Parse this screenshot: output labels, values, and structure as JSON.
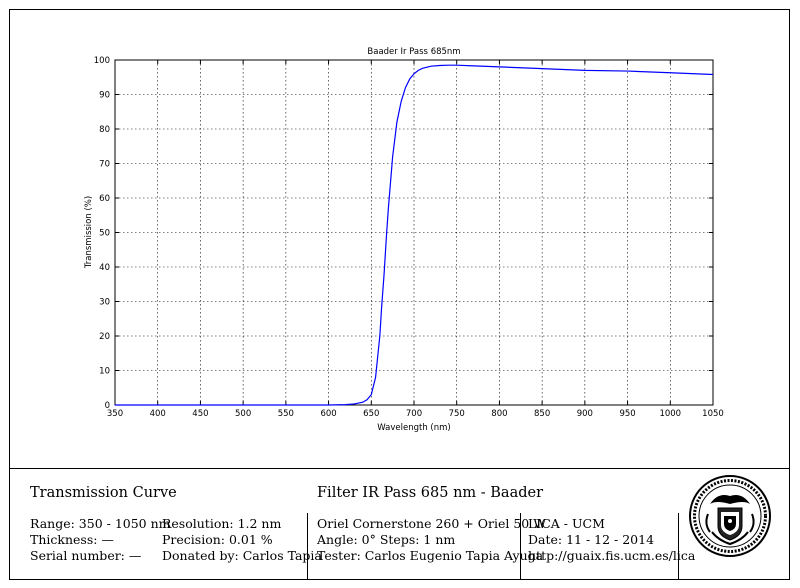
{
  "chart_data": {
    "type": "line",
    "title": "Baader Ir Pass 685nm",
    "xlabel": "Wavelength (nm)",
    "ylabel": "Transmission (%)",
    "xlim": [
      350,
      1050
    ],
    "ylim": [
      0,
      100
    ],
    "xticks": [
      350,
      400,
      450,
      500,
      550,
      600,
      650,
      700,
      750,
      800,
      850,
      900,
      950,
      1000,
      1050
    ],
    "yticks": [
      0,
      10,
      20,
      30,
      40,
      50,
      60,
      70,
      80,
      90,
      100
    ],
    "grid": true,
    "series": [
      {
        "color": "#0000ff",
        "x": [
          350,
          400,
          450,
          500,
          550,
          600,
          620,
          630,
          640,
          645,
          650,
          655,
          660,
          662,
          665,
          668,
          670,
          673,
          675,
          678,
          680,
          685,
          690,
          695,
          700,
          705,
          710,
          720,
          730,
          740,
          750,
          770,
          800,
          850,
          900,
          950,
          1000,
          1050
        ],
        "y": [
          0,
          0,
          0,
          0,
          0,
          0,
          0.1,
          0.3,
          0.8,
          1.5,
          3,
          8,
          20,
          28,
          38,
          50,
          57,
          66,
          72,
          78,
          82,
          88,
          92,
          94.5,
          96,
          97,
          97.6,
          98.2,
          98.4,
          98.5,
          98.5,
          98.3,
          98,
          97.5,
          97,
          96.8,
          96.3,
          95.8
        ]
      }
    ]
  },
  "footer": {
    "heading": "Transmission Curve",
    "filter_name": "Filter IR Pass 685 nm - Baader",
    "range": "Range: 350 - 1050 nm",
    "thickness": "Thickness: —",
    "serial": "Serial number: —",
    "resolution": "Resolution: 1.2 nm",
    "precision": "Precision: 0.01 %",
    "donated": "Donated by: Carlos Tapia",
    "equipment": "Oriel Cornerstone 260 + Oriel 50 W",
    "angle_steps": "Angle: 0°    Steps: 1 nm",
    "tester": "Tester: Carlos Eugenio Tapia Ayuga",
    "lab": "LICA - UCM",
    "date": "Date: 11 - 12 - 2014",
    "url": "http://guaix.fis.ucm.es/lica"
  }
}
